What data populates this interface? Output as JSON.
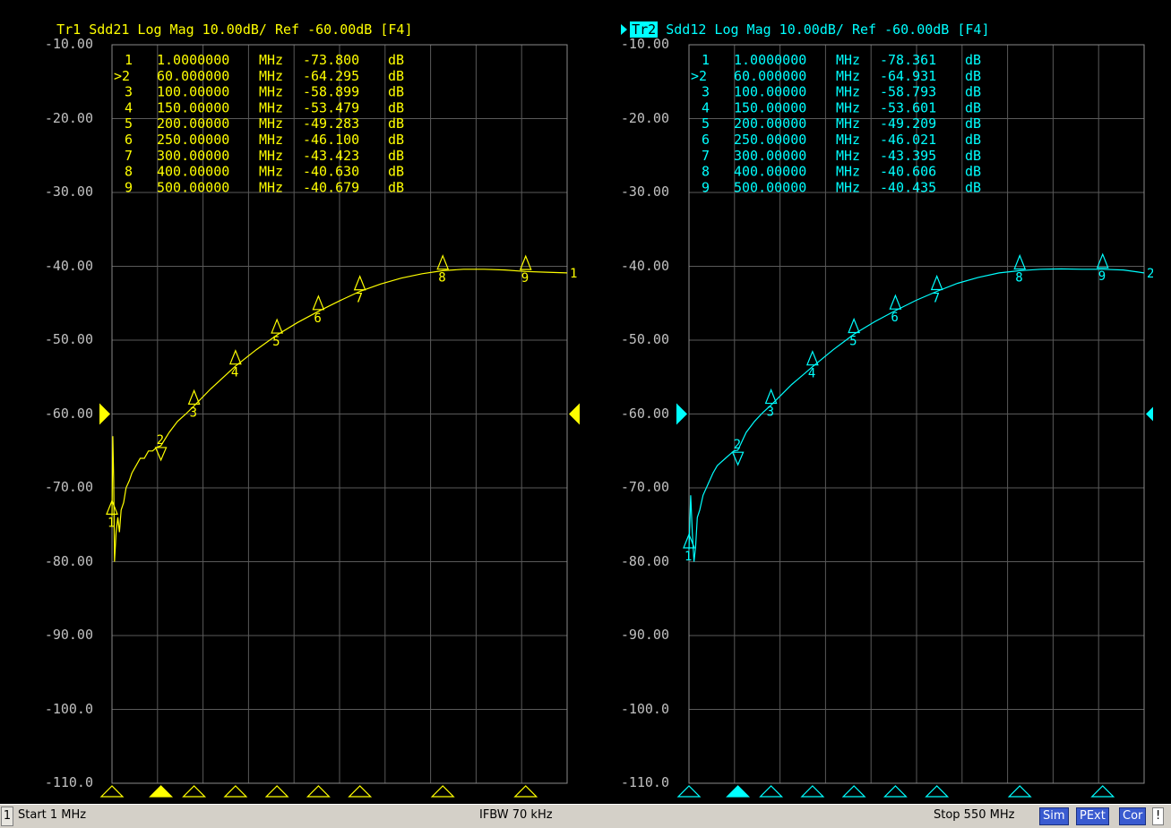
{
  "traces": [
    {
      "id": "tr1",
      "label": "Tr1",
      "active": false,
      "header_rest": " Sdd21 Log Mag 10.00dB/ Ref -60.00dB [F4]",
      "color": "#ffff00",
      "end_label": "1",
      "markers": [
        {
          "num": "1",
          "active": false,
          "freq": "1.0000000",
          "unit": "MHz",
          "value": "-73.800",
          "vunit": "dB"
        },
        {
          "num": "2",
          "active": true,
          "freq": "60.000000",
          "unit": "MHz",
          "value": "-64.295",
          "vunit": "dB"
        },
        {
          "num": "3",
          "active": false,
          "freq": "100.00000",
          "unit": "MHz",
          "value": "-58.899",
          "vunit": "dB"
        },
        {
          "num": "4",
          "active": false,
          "freq": "150.00000",
          "unit": "MHz",
          "value": "-53.479",
          "vunit": "dB"
        },
        {
          "num": "5",
          "active": false,
          "freq": "200.00000",
          "unit": "MHz",
          "value": "-49.283",
          "vunit": "dB"
        },
        {
          "num": "6",
          "active": false,
          "freq": "250.00000",
          "unit": "MHz",
          "value": "-46.100",
          "vunit": "dB"
        },
        {
          "num": "7",
          "active": false,
          "freq": "300.00000",
          "unit": "MHz",
          "value": "-43.423",
          "vunit": "dB"
        },
        {
          "num": "8",
          "active": false,
          "freq": "400.00000",
          "unit": "MHz",
          "value": "-40.630",
          "vunit": "dB"
        },
        {
          "num": "9",
          "active": false,
          "freq": "500.00000",
          "unit": "MHz",
          "value": "-40.679",
          "vunit": "dB"
        }
      ],
      "curve": [
        [
          1,
          -73.8
        ],
        [
          2,
          -63
        ],
        [
          3,
          -69
        ],
        [
          4,
          -80
        ],
        [
          6,
          -76
        ],
        [
          8,
          -74
        ],
        [
          10,
          -76
        ],
        [
          12,
          -73
        ],
        [
          15,
          -72
        ],
        [
          18,
          -70
        ],
        [
          22,
          -69
        ],
        [
          25,
          -68
        ],
        [
          30,
          -67
        ],
        [
          35,
          -66
        ],
        [
          40,
          -66
        ],
        [
          45,
          -65
        ],
        [
          50,
          -65
        ],
        [
          55,
          -64.5
        ],
        [
          60,
          -64.3
        ],
        [
          70,
          -62.5
        ],
        [
          80,
          -61
        ],
        [
          90,
          -60
        ],
        [
          100,
          -58.9
        ],
        [
          120,
          -56.6
        ],
        [
          150,
          -53.5
        ],
        [
          175,
          -51.3
        ],
        [
          200,
          -49.3
        ],
        [
          225,
          -47.6
        ],
        [
          250,
          -46.1
        ],
        [
          275,
          -44.7
        ],
        [
          300,
          -43.4
        ],
        [
          325,
          -42.4
        ],
        [
          350,
          -41.6
        ],
        [
          375,
          -41
        ],
        [
          400,
          -40.6
        ],
        [
          425,
          -40.4
        ],
        [
          450,
          -40.4
        ],
        [
          475,
          -40.5
        ],
        [
          500,
          -40.7
        ],
        [
          525,
          -40.8
        ],
        [
          550,
          -40.9
        ]
      ]
    },
    {
      "id": "tr2",
      "label": "Tr2",
      "active": true,
      "header_rest": " Sdd12 Log Mag 10.00dB/ Ref -60.00dB [F4]",
      "color": "#00ffff",
      "end_label": "2",
      "markers": [
        {
          "num": "1",
          "active": false,
          "freq": "1.0000000",
          "unit": "MHz",
          "value": "-78.361",
          "vunit": "dB"
        },
        {
          "num": "2",
          "active": true,
          "freq": "60.000000",
          "unit": "MHz",
          "value": "-64.931",
          "vunit": "dB"
        },
        {
          "num": "3",
          "active": false,
          "freq": "100.00000",
          "unit": "MHz",
          "value": "-58.793",
          "vunit": "dB"
        },
        {
          "num": "4",
          "active": false,
          "freq": "150.00000",
          "unit": "MHz",
          "value": "-53.601",
          "vunit": "dB"
        },
        {
          "num": "5",
          "active": false,
          "freq": "200.00000",
          "unit": "MHz",
          "value": "-49.209",
          "vunit": "dB"
        },
        {
          "num": "6",
          "active": false,
          "freq": "250.00000",
          "unit": "MHz",
          "value": "-46.021",
          "vunit": "dB"
        },
        {
          "num": "7",
          "active": false,
          "freq": "300.00000",
          "unit": "MHz",
          "value": "-43.395",
          "vunit": "dB"
        },
        {
          "num": "8",
          "active": false,
          "freq": "400.00000",
          "unit": "MHz",
          "value": "-40.606",
          "vunit": "dB"
        },
        {
          "num": "9",
          "active": false,
          "freq": "500.00000",
          "unit": "MHz",
          "value": "-40.435",
          "vunit": "dB"
        }
      ],
      "curve": [
        [
          1,
          -78.4
        ],
        [
          3,
          -71
        ],
        [
          5,
          -76
        ],
        [
          7,
          -80
        ],
        [
          9,
          -78
        ],
        [
          11,
          -74
        ],
        [
          14,
          -73
        ],
        [
          18,
          -71
        ],
        [
          22,
          -70
        ],
        [
          26,
          -69
        ],
        [
          30,
          -68
        ],
        [
          35,
          -67
        ],
        [
          40,
          -66.5
        ],
        [
          45,
          -66
        ],
        [
          50,
          -65.5
        ],
        [
          55,
          -65
        ],
        [
          60,
          -64.9
        ],
        [
          70,
          -62.5
        ],
        [
          80,
          -61
        ],
        [
          90,
          -59.8
        ],
        [
          100,
          -58.8
        ],
        [
          125,
          -56
        ],
        [
          150,
          -53.6
        ],
        [
          175,
          -51.3
        ],
        [
          200,
          -49.2
        ],
        [
          225,
          -47.5
        ],
        [
          250,
          -46
        ],
        [
          275,
          -44.6
        ],
        [
          300,
          -43.4
        ],
        [
          325,
          -42.3
        ],
        [
          350,
          -41.5
        ],
        [
          375,
          -40.9
        ],
        [
          400,
          -40.6
        ],
        [
          425,
          -40.4
        ],
        [
          450,
          -40.35
        ],
        [
          475,
          -40.4
        ],
        [
          500,
          -40.4
        ],
        [
          525,
          -40.5
        ],
        [
          550,
          -40.9
        ]
      ]
    }
  ],
  "y_axis": {
    "labels": [
      "-10.00",
      "-20.00",
      "-30.00",
      "-40.00",
      "-50.00",
      "-60.00",
      "-70.00",
      "-80.00",
      "-90.00",
      "-100.0",
      "-110.0"
    ],
    "top": -10,
    "bottom": -110,
    "ref": -60
  },
  "x_axis": {
    "start_mhz": 1,
    "stop_mhz": 550
  },
  "status": {
    "channel": "1",
    "start": "Start 1 MHz",
    "ifbw": "IFBW 70 kHz",
    "stop": "Stop 550 MHz",
    "sim": "Sim",
    "pext": "PExt",
    "cor": "Cor",
    "excl": "!"
  }
}
